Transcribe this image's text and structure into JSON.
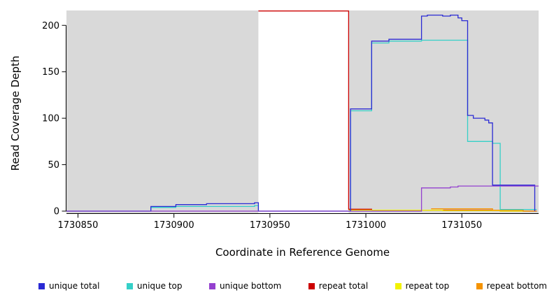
{
  "figure": {
    "page_background": "#ffffff"
  },
  "chart_data": {
    "type": "line",
    "title": "",
    "xlabel": "Coordinate in Reference Genome",
    "ylabel": "Read Coverage Depth",
    "xlim": [
      1730844,
      1731090
    ],
    "ylim": [
      0,
      216
    ],
    "x_ticks": [
      1730850,
      1730900,
      1730950,
      1731000,
      1731050
    ],
    "y_ticks": [
      0,
      50,
      100,
      150,
      200
    ],
    "grid": false,
    "plot_background": "#d9d9d9",
    "highlight_band": {
      "from": 1730944,
      "to": 1730991,
      "color": "#ffffff"
    },
    "legend_position": "bottom",
    "series": [
      {
        "name": "repeat total",
        "color": "#cc0000",
        "points": [
          [
            1730944,
            215.5
          ],
          [
            1730991,
            215.5
          ],
          [
            1730991,
            2
          ],
          [
            1731003,
            2
          ],
          [
            1731003,
            1
          ],
          [
            1731070,
            1
          ],
          [
            1731070,
            0
          ],
          [
            1731089,
            0
          ]
        ]
      },
      {
        "name": "repeat top",
        "color": "#f2f200",
        "points": [
          [
            1730991,
            1
          ],
          [
            1731040,
            1
          ],
          [
            1731040,
            0.5
          ],
          [
            1731070,
            0.5
          ],
          [
            1731070,
            0
          ],
          [
            1731085,
            0
          ]
        ]
      },
      {
        "name": "repeat bottom",
        "color": "#f59300",
        "points": [
          [
            1731034,
            2.5
          ],
          [
            1731066,
            2.5
          ],
          [
            1731066,
            1
          ],
          [
            1731082,
            1
          ],
          [
            1731082,
            0
          ],
          [
            1731089,
            0
          ]
        ]
      },
      {
        "name": "unique top",
        "color": "#35d0c8",
        "points": [
          [
            1730844,
            0
          ],
          [
            1730888,
            0
          ],
          [
            1730888,
            4
          ],
          [
            1730901,
            4
          ],
          [
            1730901,
            5
          ],
          [
            1730942,
            5
          ],
          [
            1730942,
            6
          ],
          [
            1730944,
            6
          ],
          [
            1730944,
            0
          ],
          [
            1730992,
            0
          ],
          [
            1730992,
            108
          ],
          [
            1731003,
            108
          ],
          [
            1731003,
            181
          ],
          [
            1731012,
            181
          ],
          [
            1731012,
            183
          ],
          [
            1731029,
            183
          ],
          [
            1731029,
            184
          ],
          [
            1731053,
            184
          ],
          [
            1731053,
            75
          ],
          [
            1731066,
            75
          ],
          [
            1731066,
            73
          ],
          [
            1731070,
            73
          ],
          [
            1731070,
            1.8
          ],
          [
            1731089,
            1.8
          ]
        ]
      },
      {
        "name": "unique total",
        "color": "#2a2ad4",
        "points": [
          [
            1730844,
            0
          ],
          [
            1730888,
            0
          ],
          [
            1730888,
            5
          ],
          [
            1730901,
            5
          ],
          [
            1730901,
            7
          ],
          [
            1730917,
            7
          ],
          [
            1730917,
            8
          ],
          [
            1730942,
            8
          ],
          [
            1730942,
            9
          ],
          [
            1730944,
            9
          ],
          [
            1730944,
            0
          ],
          [
            1730992,
            0
          ],
          [
            1730992,
            110
          ],
          [
            1731003,
            110
          ],
          [
            1731003,
            183
          ],
          [
            1731012,
            183
          ],
          [
            1731012,
            185
          ],
          [
            1731029,
            185
          ],
          [
            1731029,
            210
          ],
          [
            1731032,
            210
          ],
          [
            1731032,
            211
          ],
          [
            1731040,
            211
          ],
          [
            1731040,
            210
          ],
          [
            1731044,
            210
          ],
          [
            1731044,
            211
          ],
          [
            1731048,
            211
          ],
          [
            1731048,
            208
          ],
          [
            1731050,
            208
          ],
          [
            1731050,
            205
          ],
          [
            1731053,
            205
          ],
          [
            1731053,
            103
          ],
          [
            1731056,
            103
          ],
          [
            1731056,
            100
          ],
          [
            1731062,
            100
          ],
          [
            1731062,
            98
          ],
          [
            1731064,
            98
          ],
          [
            1731064,
            95
          ],
          [
            1731066,
            95
          ],
          [
            1731066,
            28
          ],
          [
            1731088,
            28
          ],
          [
            1731088,
            0
          ]
        ]
      },
      {
        "name": "unique bottom",
        "color": "#9440cf",
        "points": [
          [
            1730844,
            0
          ],
          [
            1731029,
            0
          ],
          [
            1731029,
            25
          ],
          [
            1731044,
            25
          ],
          [
            1731044,
            26
          ],
          [
            1731048,
            26
          ],
          [
            1731048,
            27
          ],
          [
            1731090,
            27
          ]
        ]
      }
    ]
  },
  "legend": {
    "items": [
      {
        "label": "unique total",
        "color": "#2a2ad4"
      },
      {
        "label": "unique top",
        "color": "#35d0c8"
      },
      {
        "label": "unique bottom",
        "color": "#9440cf"
      },
      {
        "label": "repeat total",
        "color": "#cc0000"
      },
      {
        "label": "repeat top",
        "color": "#f2f200"
      },
      {
        "label": "repeat bottom",
        "color": "#f59300"
      }
    ]
  }
}
